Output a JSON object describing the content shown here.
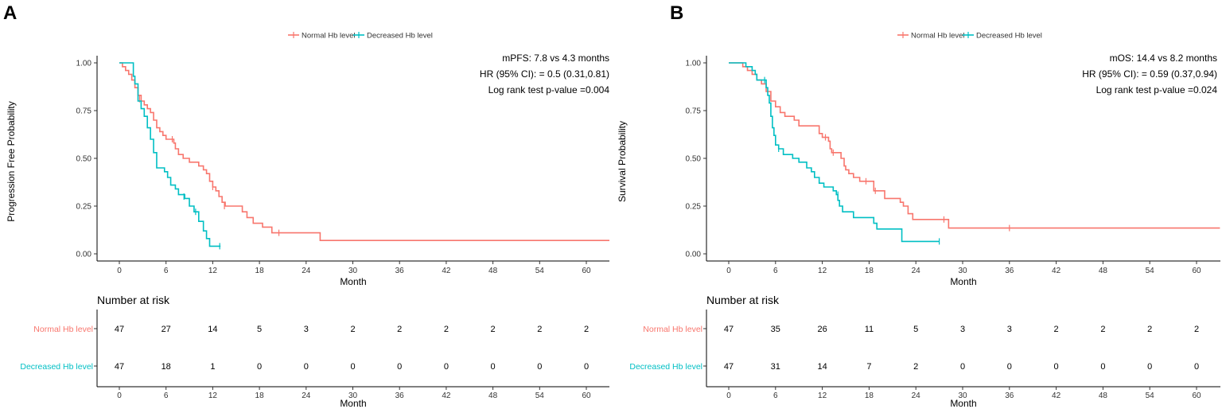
{
  "colors": {
    "normal": "#F8766D",
    "decreased": "#00BFC4",
    "axis": "#000000",
    "tick_text": "#4D4D4D"
  },
  "legend": {
    "normal": "Normal Hb level",
    "decreased": "Decreased Hb level"
  },
  "chart_data": [
    {
      "type": "line",
      "panel_label": "A",
      "ylabel": "Progression Free Probability",
      "xlabel": "Month",
      "xlim": [
        0,
        63
      ],
      "ylim": [
        0,
        1
      ],
      "x_ticks": [
        "0",
        "6",
        "12",
        "18",
        "24",
        "30",
        "36",
        "42",
        "48",
        "54",
        "60"
      ],
      "y_ticks": [
        "0.00",
        "0.25",
        "0.50",
        "0.75",
        "1.00"
      ],
      "annotations": [
        "mPFS: 7.8 vs 4.3 months",
        "HR (95% CI): = 0.5 (0.31,0.81)",
        "Log rank test p-value =0.004"
      ],
      "series": [
        {
          "name": "Normal Hb level",
          "color_key": "normal",
          "points": [
            [
              0,
              1.0
            ],
            [
              0.4,
              0.98
            ],
            [
              0.8,
              0.96
            ],
            [
              1.2,
              0.94
            ],
            [
              1.6,
              0.91
            ],
            [
              2.0,
              0.87
            ],
            [
              2.4,
              0.83
            ],
            [
              2.8,
              0.8
            ],
            [
              3.2,
              0.78
            ],
            [
              3.6,
              0.76
            ],
            [
              4.0,
              0.74
            ],
            [
              4.4,
              0.7
            ],
            [
              4.8,
              0.66
            ],
            [
              5.2,
              0.64
            ],
            [
              5.6,
              0.62
            ],
            [
              6.0,
              0.6
            ],
            [
              6.8,
              0.6
            ],
            [
              7.0,
              0.58
            ],
            [
              7.2,
              0.55
            ],
            [
              7.6,
              0.52
            ],
            [
              8.2,
              0.5
            ],
            [
              9.0,
              0.48
            ],
            [
              10.2,
              0.46
            ],
            [
              10.8,
              0.44
            ],
            [
              11.2,
              0.42
            ],
            [
              11.6,
              0.38
            ],
            [
              12.0,
              0.35
            ],
            [
              12.4,
              0.33
            ],
            [
              12.8,
              0.3
            ],
            [
              13.2,
              0.27
            ],
            [
              13.6,
              0.25
            ],
            [
              15.6,
              0.25
            ],
            [
              15.8,
              0.22
            ],
            [
              16.4,
              0.19
            ],
            [
              17.2,
              0.16
            ],
            [
              18.4,
              0.14
            ],
            [
              19.6,
              0.11
            ],
            [
              25.6,
              0.11
            ],
            [
              25.8,
              0.07
            ],
            [
              63,
              0.07
            ]
          ],
          "censor": [
            [
              2.6,
              0.81
            ],
            [
              6.8,
              0.6
            ],
            [
              12.0,
              0.35
            ],
            [
              13.5,
              0.25
            ],
            [
              20.5,
              0.11
            ]
          ]
        },
        {
          "name": "Decreased Hb level",
          "color_key": "decreased",
          "points": [
            [
              0,
              1.0
            ],
            [
              1.6,
              1.0
            ],
            [
              1.8,
              0.93
            ],
            [
              2.0,
              0.89
            ],
            [
              2.4,
              0.8
            ],
            [
              2.8,
              0.76
            ],
            [
              3.2,
              0.72
            ],
            [
              3.6,
              0.66
            ],
            [
              4.0,
              0.6
            ],
            [
              4.4,
              0.53
            ],
            [
              4.8,
              0.45
            ],
            [
              5.8,
              0.43
            ],
            [
              6.2,
              0.4
            ],
            [
              6.6,
              0.36
            ],
            [
              7.2,
              0.34
            ],
            [
              7.6,
              0.31
            ],
            [
              8.4,
              0.29
            ],
            [
              9.0,
              0.25
            ],
            [
              9.6,
              0.22
            ],
            [
              10.2,
              0.17
            ],
            [
              10.8,
              0.12
            ],
            [
              11.2,
              0.08
            ],
            [
              11.6,
              0.04
            ],
            [
              13.0,
              0.04
            ]
          ],
          "censor": [
            [
              8.3,
              0.3
            ],
            [
              9.8,
              0.22
            ],
            [
              12.9,
              0.04
            ]
          ]
        }
      ],
      "risk_table": {
        "title": "Number at risk",
        "times": [
          "0",
          "6",
          "12",
          "18",
          "24",
          "30",
          "36",
          "42",
          "48",
          "54",
          "60"
        ],
        "rows": [
          {
            "label": "Normal Hb level",
            "color_key": "normal",
            "values": [
              "47",
              "27",
              "14",
              "5",
              "3",
              "2",
              "2",
              "2",
              "2",
              "2",
              "2"
            ]
          },
          {
            "label": "Decreased Hb level",
            "color_key": "decreased",
            "values": [
              "47",
              "18",
              "1",
              "0",
              "0",
              "0",
              "0",
              "0",
              "0",
              "0",
              "0"
            ]
          }
        ],
        "xlabel": "Month"
      }
    },
    {
      "type": "line",
      "panel_label": "B",
      "ylabel": "Survival Probability",
      "xlabel": "Month",
      "xlim": [
        0,
        63
      ],
      "ylim": [
        0,
        1
      ],
      "x_ticks": [
        "0",
        "6",
        "12",
        "18",
        "24",
        "30",
        "36",
        "42",
        "48",
        "54",
        "60"
      ],
      "y_ticks": [
        "0.00",
        "0.25",
        "0.50",
        "0.75",
        "1.00"
      ],
      "annotations": [
        "mOS: 14.4 vs 8.2 months",
        "HR (95% CI): = 0.59 (0.37,0.94)",
        "Log rank test p-value =0.024"
      ],
      "series": [
        {
          "name": "Normal Hb level",
          "color_key": "normal",
          "points": [
            [
              0,
              1.0
            ],
            [
              1.6,
              1.0
            ],
            [
              1.8,
              0.98
            ],
            [
              2.4,
              0.96
            ],
            [
              3.0,
              0.94
            ],
            [
              3.6,
              0.91
            ],
            [
              4.2,
              0.89
            ],
            [
              4.8,
              0.85
            ],
            [
              5.4,
              0.8
            ],
            [
              6.0,
              0.77
            ],
            [
              6.6,
              0.74
            ],
            [
              7.2,
              0.72
            ],
            [
              8.4,
              0.7
            ],
            [
              9.0,
              0.67
            ],
            [
              11.4,
              0.67
            ],
            [
              11.6,
              0.63
            ],
            [
              12.0,
              0.61
            ],
            [
              12.8,
              0.59
            ],
            [
              13.0,
              0.55
            ],
            [
              13.2,
              0.53
            ],
            [
              14.4,
              0.5
            ],
            [
              14.8,
              0.46
            ],
            [
              15.0,
              0.44
            ],
            [
              15.4,
              0.42
            ],
            [
              16.0,
              0.4
            ],
            [
              16.8,
              0.38
            ],
            [
              18.4,
              0.38
            ],
            [
              18.6,
              0.33
            ],
            [
              19.8,
              0.33
            ],
            [
              20.0,
              0.29
            ],
            [
              22.0,
              0.27
            ],
            [
              22.4,
              0.25
            ],
            [
              23.0,
              0.21
            ],
            [
              23.6,
              0.18
            ],
            [
              28.0,
              0.18
            ],
            [
              28.2,
              0.135
            ],
            [
              63,
              0.135
            ]
          ],
          "censor": [
            [
              12.4,
              0.61
            ],
            [
              13.4,
              0.53
            ],
            [
              17.6,
              0.38
            ],
            [
              18.8,
              0.33
            ],
            [
              27.6,
              0.18
            ],
            [
              36.0,
              0.135
            ]
          ]
        },
        {
          "name": "Decreased Hb level",
          "color_key": "decreased",
          "points": [
            [
              0,
              1.0
            ],
            [
              2.0,
              1.0
            ],
            [
              2.2,
              0.98
            ],
            [
              3.0,
              0.96
            ],
            [
              3.4,
              0.94
            ],
            [
              3.6,
              0.91
            ],
            [
              4.6,
              0.91
            ],
            [
              4.8,
              0.87
            ],
            [
              5.0,
              0.83
            ],
            [
              5.2,
              0.79
            ],
            [
              5.4,
              0.72
            ],
            [
              5.6,
              0.66
            ],
            [
              5.8,
              0.62
            ],
            [
              6.0,
              0.57
            ],
            [
              6.4,
              0.55
            ],
            [
              7.0,
              0.52
            ],
            [
              8.0,
              0.52
            ],
            [
              8.2,
              0.5
            ],
            [
              9.0,
              0.48
            ],
            [
              10.0,
              0.45
            ],
            [
              10.6,
              0.43
            ],
            [
              11.0,
              0.4
            ],
            [
              11.6,
              0.37
            ],
            [
              12.2,
              0.35
            ],
            [
              13.4,
              0.33
            ],
            [
              13.8,
              0.31
            ],
            [
              14.0,
              0.28
            ],
            [
              14.2,
              0.25
            ],
            [
              14.6,
              0.22
            ],
            [
              15.8,
              0.22
            ],
            [
              16.0,
              0.19
            ],
            [
              18.0,
              0.19
            ],
            [
              18.6,
              0.16
            ],
            [
              19.0,
              0.13
            ],
            [
              22.0,
              0.13
            ],
            [
              22.2,
              0.065
            ],
            [
              27.0,
              0.065
            ]
          ],
          "censor": [
            [
              4.6,
              0.91
            ],
            [
              6.4,
              0.55
            ],
            [
              14.0,
              0.31
            ],
            [
              27.0,
              0.065
            ]
          ]
        }
      ],
      "risk_table": {
        "title": "Number at risk",
        "times": [
          "0",
          "6",
          "12",
          "18",
          "24",
          "30",
          "36",
          "42",
          "48",
          "54",
          "60"
        ],
        "rows": [
          {
            "label": "Normal Hb level",
            "color_key": "normal",
            "values": [
              "47",
              "35",
              "26",
              "11",
              "5",
              "3",
              "3",
              "2",
              "2",
              "2",
              "2"
            ]
          },
          {
            "label": "Decreased Hb level",
            "color_key": "decreased",
            "values": [
              "47",
              "31",
              "14",
              "7",
              "2",
              "0",
              "0",
              "0",
              "0",
              "0",
              "0"
            ]
          }
        ],
        "xlabel": "Month"
      }
    }
  ]
}
